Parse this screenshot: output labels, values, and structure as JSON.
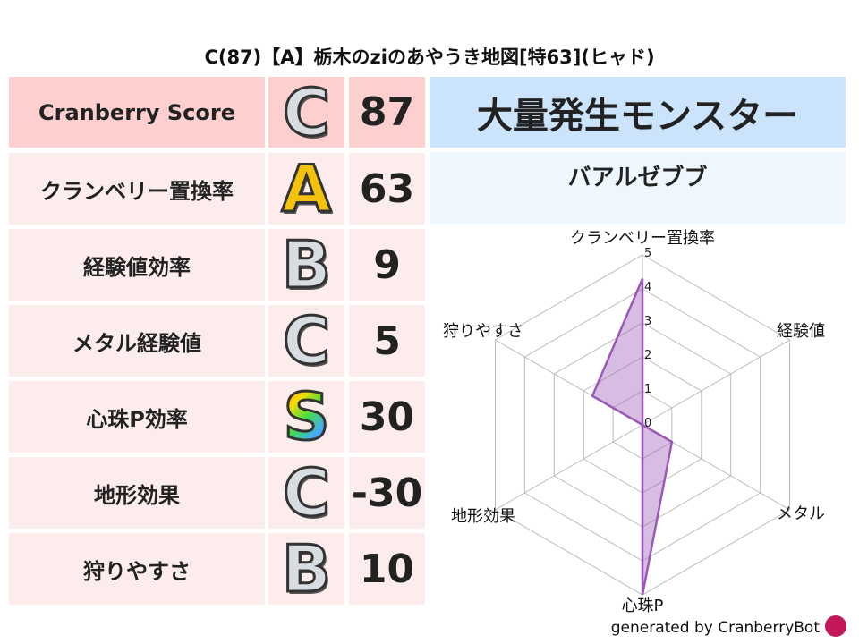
{
  "title": "C(87)【A】栃木のziのあやうき地図[特63](ヒャド)",
  "rows": [
    {
      "label": "Cranberry Score",
      "grade": "C",
      "value": "87"
    },
    {
      "label": "クランベリー置換率",
      "grade": "A",
      "value": "63"
    },
    {
      "label": "経験値効率",
      "grade": "B",
      "value": "9"
    },
    {
      "label": "メタル経験値",
      "grade": "C",
      "value": "5"
    },
    {
      "label": "心珠P効率",
      "grade": "S",
      "value": "30"
    },
    {
      "label": "地形効果",
      "grade": "C",
      "value": "-30"
    },
    {
      "label": "狩りやすさ",
      "grade": "B",
      "value": "10"
    }
  ],
  "monster": {
    "header": "大量発生モンスター",
    "name": "バアルゼブブ"
  },
  "footer": "generated by CranberryBot",
  "chart_data": {
    "type": "radar",
    "categories": [
      "クランベリー置換率",
      "経験値",
      "メタル",
      "心珠P",
      "地形効果",
      "狩りやすさ"
    ],
    "values": [
      4.3,
      0,
      1.0,
      5.0,
      0,
      1.7
    ],
    "rlim": [
      0,
      5
    ],
    "ticks": [
      "0",
      "1",
      "2",
      "3",
      "4",
      "5"
    ],
    "color": "#9b59b6"
  }
}
